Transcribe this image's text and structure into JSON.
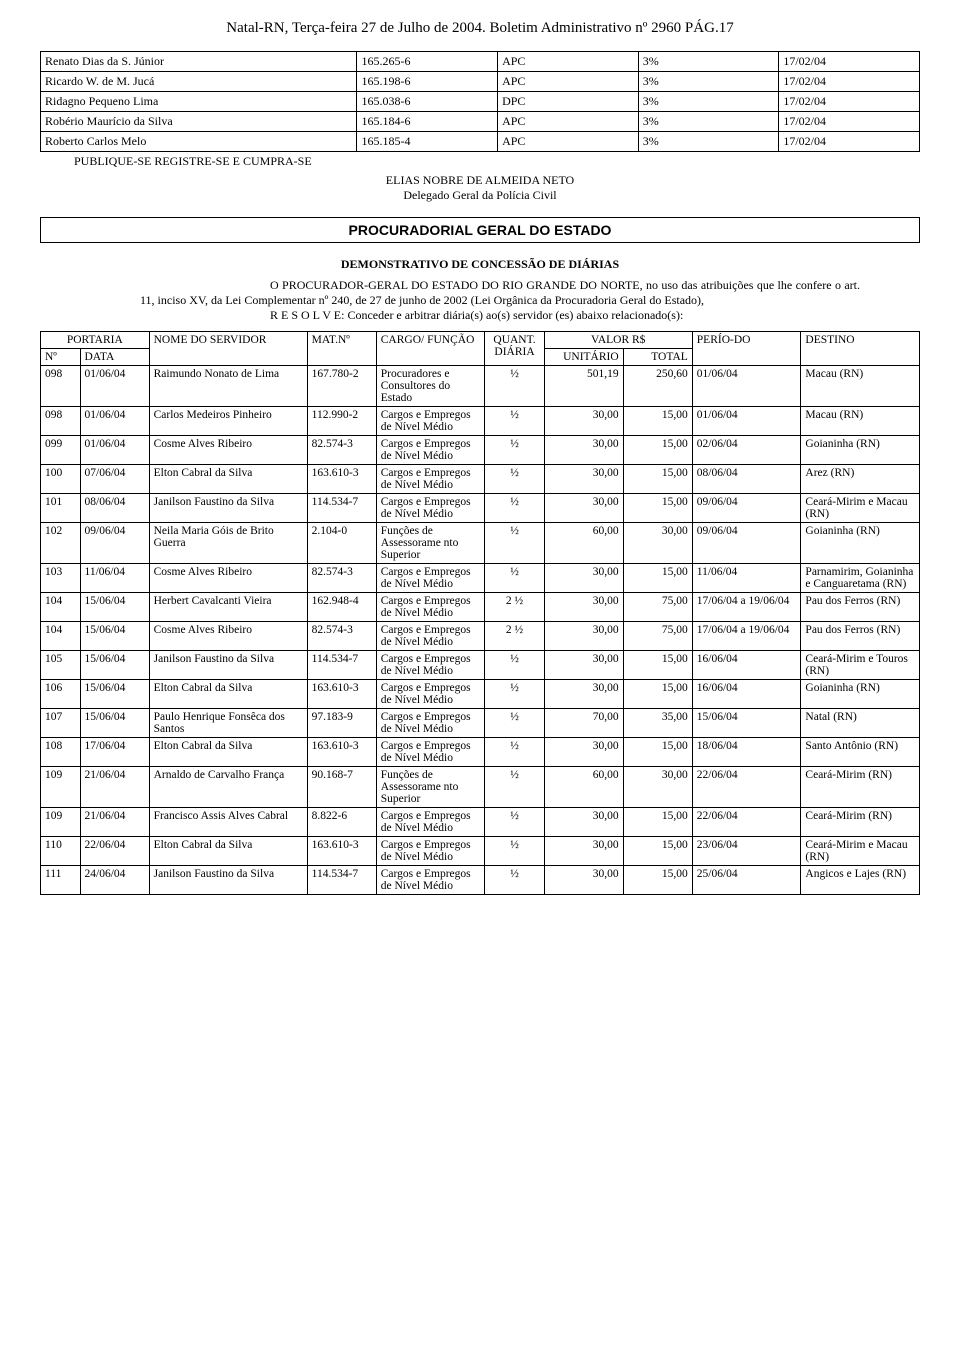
{
  "header": {
    "text": "Natal-RN, Terça-feira 27 de Julho de 2004. Boletim Administrativo nº 2960 PÁG.17"
  },
  "table1_rows": [
    {
      "name": "Renato Dias da S. Júnior",
      "mat": "165.265-6",
      "cargo": "APC",
      "pct": "3%",
      "date": "17/02/04"
    },
    {
      "name": "Ricardo W. de M. Jucá",
      "mat": "165.198-6",
      "cargo": "APC",
      "pct": "3%",
      "date": "17/02/04"
    },
    {
      "name": "Ridagno Pequeno Lima",
      "mat": "165.038-6",
      "cargo": "DPC",
      "pct": "3%",
      "date": "17/02/04"
    },
    {
      "name": "Robério Maurício da Silva",
      "mat": "165.184-6",
      "cargo": "APC",
      "pct": "3%",
      "date": "17/02/04"
    },
    {
      "name": "Roberto Carlos Melo",
      "mat": "165.185-4",
      "cargo": "APC",
      "pct": "3%",
      "date": "17/02/04"
    }
  ],
  "publique": "PUBLIQUE-SE REGISTRE-SE E CUMPRA-SE",
  "signer_name": "ELIAS NOBRE DE ALMEIDA NETO",
  "signer_title": "Delegado Geral da Polícia Civil",
  "section_title": "PROCURADORIAL GERAL DO ESTADO",
  "sub_heading": "DEMONSTRATIVO DE CONCESSÃO DE DIÁRIAS",
  "body_p1": "O PROCURADOR-GERAL DO ESTADO DO RIO GRANDE DO NORTE, no uso das atribuições que lhe confere o art. 11, inciso XV, da Lei Complementar nº 240, de 27 de junho de 2002 (Lei Orgânica da Procuradoria Geral do Estado),",
  "resolve": "R E S O L V E: Conceder e arbitrar diária(s) ao(s) servidor (es) abaixo relacionado(s):",
  "table2_headers": {
    "portaria": "PORTARIA",
    "no": "Nº",
    "data": "DATA",
    "nome": "NOME DO SERVIDOR",
    "mat": "MAT.Nº",
    "cargo": "CARGO/ FUNÇÃO",
    "quant": "QUANT. DIÁRIA",
    "valor": "VALOR R$",
    "unit": "UNITÁRIO",
    "total": "TOTAL",
    "periodo": "PERÍO-DO",
    "destino": "DESTINO"
  },
  "table2_rows": [
    {
      "no": "098",
      "data": "01/06/04",
      "nome": "Raimundo Nonato de Lima",
      "mat": "167.780-2",
      "cargo": "Procuradores e Consultores do Estado",
      "quant": "½",
      "unit": "501,19",
      "total": "250,60",
      "periodo": "01/06/04",
      "destino": "Macau (RN)"
    },
    {
      "no": "098",
      "data": "01/06/04",
      "nome": "Carlos Medeiros Pinheiro",
      "mat": "112.990-2",
      "cargo": "Cargos e Empregos de Nível Médio",
      "quant": "½",
      "unit": "30,00",
      "total": "15,00",
      "periodo": "01/06/04",
      "destino": "Macau (RN)"
    },
    {
      "no": "099",
      "data": "01/06/04",
      "nome": "Cosme Alves Ribeiro",
      "mat": "82.574-3",
      "cargo": "Cargos e Empregos de Nível Médio",
      "quant": "½",
      "unit": "30,00",
      "total": "15,00",
      "periodo": "02/06/04",
      "destino": "Goianinha (RN)"
    },
    {
      "no": "100",
      "data": "07/06/04",
      "nome": "Elton Cabral da Silva",
      "mat": "163.610-3",
      "cargo": "Cargos e Empregos de Nível Médio",
      "quant": "½",
      "unit": "30,00",
      "total": "15,00",
      "periodo": "08/06/04",
      "destino": "Arez (RN)"
    },
    {
      "no": "101",
      "data": "08/06/04",
      "nome": "Janilson Faustino da Silva",
      "mat": "114.534-7",
      "cargo": "Cargos e Empregos de Nível Médio",
      "quant": "½",
      "unit": "30,00",
      "total": "15,00",
      "periodo": "09/06/04",
      "destino": "Ceará-Mirim e Macau (RN)"
    },
    {
      "no": "102",
      "data": "09/06/04",
      "nome": "Neila Maria Góis de Brito Guerra",
      "mat": "2.104-0",
      "cargo": "Funções de Assessorame nto Superior",
      "quant": "½",
      "unit": "60,00",
      "total": "30,00",
      "periodo": "09/06/04",
      "destino": "Goianinha (RN)"
    },
    {
      "no": "103",
      "data": "11/06/04",
      "nome": "Cosme Alves Ribeiro",
      "mat": "82.574-3",
      "cargo": "Cargos e Empregos de Nível Médio",
      "quant": "½",
      "unit": "30,00",
      "total": "15,00",
      "periodo": "11/06/04",
      "destino": "Parnamirim, Goianinha e Canguaretama (RN)"
    },
    {
      "no": "104",
      "data": "15/06/04",
      "nome": "Herbert Cavalcanti Vieira",
      "mat": "162.948-4",
      "cargo": "Cargos e Empregos de Nível Médio",
      "quant": "2 ½",
      "unit": "30,00",
      "total": "75,00",
      "periodo": "17/06/04 a 19/06/04",
      "destino": "Pau dos Ferros (RN)"
    },
    {
      "no": "104",
      "data": "15/06/04",
      "nome": "Cosme Alves Ribeiro",
      "mat": "82.574-3",
      "cargo": "Cargos e Empregos de Nível Médio",
      "quant": "2 ½",
      "unit": "30,00",
      "total": "75,00",
      "periodo": "17/06/04 a 19/06/04",
      "destino": "Pau dos Ferros (RN)"
    },
    {
      "no": "105",
      "data": "15/06/04",
      "nome": "Janilson Faustino da Silva",
      "mat": "114.534-7",
      "cargo": "Cargos e Empregos de Nível Médio",
      "quant": "½",
      "unit": "30,00",
      "total": "15,00",
      "periodo": "16/06/04",
      "destino": "Ceará-Mirim e Touros (RN)"
    },
    {
      "no": "106",
      "data": "15/06/04",
      "nome": "Elton Cabral da Silva",
      "mat": "163.610-3",
      "cargo": "Cargos e Empregos de Nível Médio",
      "quant": "½",
      "unit": "30,00",
      "total": "15,00",
      "periodo": "16/06/04",
      "destino": "Goianinha (RN)"
    },
    {
      "no": "107",
      "data": "15/06/04",
      "nome": "Paulo Henrique Fonsêca dos Santos",
      "mat": "97.183-9",
      "cargo": "Cargos e Empregos de Nível Médio",
      "quant": "½",
      "unit": "70,00",
      "total": "35,00",
      "periodo": "15/06/04",
      "destino": "Natal (RN)"
    },
    {
      "no": "108",
      "data": "17/06/04",
      "nome": "Elton Cabral da Silva",
      "mat": "163.610-3",
      "cargo": "Cargos e Empregos de Nível Médio",
      "quant": "½",
      "unit": "30,00",
      "total": "15,00",
      "periodo": "18/06/04",
      "destino": "Santo Antônio (RN)"
    },
    {
      "no": "109",
      "data": "21/06/04",
      "nome": "Arnaldo de Carvalho França",
      "mat": "90.168-7",
      "cargo": "Funções de Assessorame nto Superior",
      "quant": "½",
      "unit": "60,00",
      "total": "30,00",
      "periodo": "22/06/04",
      "destino": "Ceará-Mirim (RN)"
    },
    {
      "no": "109",
      "data": "21/06/04",
      "nome": "Francisco Assis Alves Cabral",
      "mat": "8.822-6",
      "cargo": "Cargos e Empregos de Nível Médio",
      "quant": "½",
      "unit": "30,00",
      "total": "15,00",
      "periodo": "22/06/04",
      "destino": "Ceará-Mirim (RN)"
    },
    {
      "no": "110",
      "data": "22/06/04",
      "nome": "Elton Cabral da Silva",
      "mat": "163.610-3",
      "cargo": "Cargos e Empregos de Nível Médio",
      "quant": "½",
      "unit": "30,00",
      "total": "15,00",
      "periodo": "23/06/04",
      "destino": "Ceará-Mirim e Macau (RN)"
    },
    {
      "no": "111",
      "data": "24/06/04",
      "nome": "Janilson Faustino da Silva",
      "mat": "114.534-7",
      "cargo": "Cargos e Empregos de Nível Médio",
      "quant": "½",
      "unit": "30,00",
      "total": "15,00",
      "periodo": "25/06/04",
      "destino": "Angicos e Lajes (RN)"
    }
  ]
}
